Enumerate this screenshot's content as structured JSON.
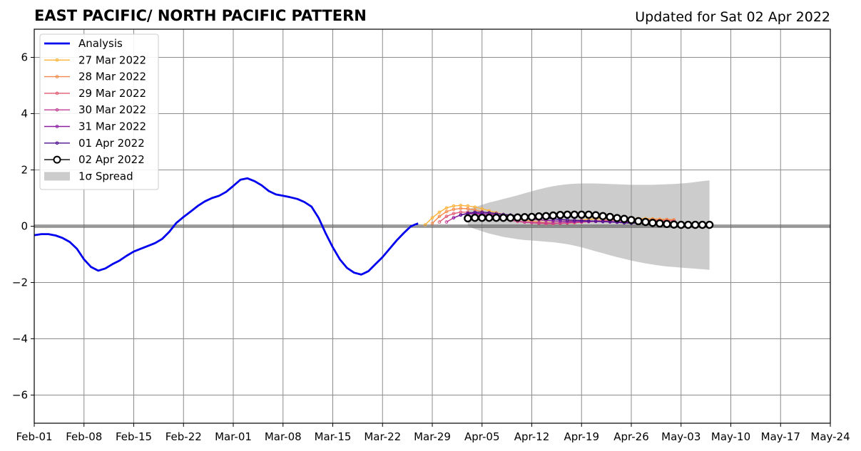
{
  "chart_data": {
    "type": "line",
    "title": "EAST PACIFIC/ NORTH PACIFIC PATTERN",
    "subtitle": "Updated for Sat 02 Apr 2022",
    "xlabel": "",
    "ylabel": "",
    "x_start": "2022-02-01",
    "x_end": "2022-05-24",
    "x_tick_labels": [
      "Feb-01",
      "Feb-08",
      "Feb-15",
      "Feb-22",
      "Mar-01",
      "Mar-08",
      "Mar-15",
      "Mar-22",
      "Mar-29",
      "Apr-05",
      "Apr-12",
      "Apr-19",
      "Apr-26",
      "May-03",
      "May-10",
      "May-17",
      "May-24"
    ],
    "ylim": [
      -7,
      7
    ],
    "y_ticks": [
      -6,
      -4,
      -2,
      0,
      2,
      4,
      6
    ],
    "y_tick_labels": [
      "−6",
      "−4",
      "−2",
      "0",
      "2",
      "4",
      "6"
    ],
    "grid": true,
    "legend_placement": "upper-left",
    "analysis": {
      "name": "Analysis",
      "color": "#0000ee",
      "start": "2022-02-01",
      "values": [
        -0.32,
        -0.28,
        -0.28,
        -0.33,
        -0.42,
        -0.56,
        -0.8,
        -1.18,
        -1.45,
        -1.58,
        -1.5,
        -1.35,
        -1.22,
        -1.05,
        -0.9,
        -0.8,
        -0.7,
        -0.6,
        -0.45,
        -0.2,
        0.12,
        0.33,
        0.52,
        0.72,
        0.88,
        1.0,
        1.08,
        1.22,
        1.43,
        1.65,
        1.7,
        1.6,
        1.45,
        1.25,
        1.13,
        1.08,
        1.03,
        0.97,
        0.86,
        0.7,
        0.3,
        -0.25,
        -0.75,
        -1.18,
        -1.48,
        -1.65,
        -1.72,
        -1.6,
        -1.35,
        -1.1,
        -0.8,
        -0.5,
        -0.24,
        0.0,
        0.1
      ]
    },
    "forecasts": [
      {
        "name": "27 Mar 2022",
        "color": "#fdb33a",
        "start": "2022-03-28",
        "values": [
          0.05,
          0.3,
          0.5,
          0.65,
          0.72,
          0.74,
          0.72,
          0.68,
          0.62,
          0.55,
          0.48,
          0.42,
          0.37,
          0.32,
          0.28,
          0.25,
          0.22,
          0.2,
          0.18,
          0.18,
          0.18,
          0.2,
          0.22,
          0.24,
          0.26,
          0.27,
          0.27,
          0.28,
          0.28,
          0.27,
          0.27,
          0.27,
          0.26,
          0.25,
          0.24,
          0.23
        ]
      },
      {
        "name": "28 Mar 2022",
        "color": "#f5894a",
        "start": "2022-03-29",
        "values": [
          0.1,
          0.35,
          0.52,
          0.6,
          0.63,
          0.62,
          0.58,
          0.52,
          0.46,
          0.4,
          0.34,
          0.29,
          0.25,
          0.21,
          0.18,
          0.15,
          0.13,
          0.12,
          0.11,
          0.11,
          0.12,
          0.14,
          0.16,
          0.18,
          0.2,
          0.22,
          0.24,
          0.25,
          0.25,
          0.25,
          0.25,
          0.25,
          0.24,
          0.24,
          0.23
        ]
      },
      {
        "name": "29 Mar 2022",
        "color": "#e05a72",
        "start": "2022-03-30",
        "values": [
          0.15,
          0.35,
          0.45,
          0.5,
          0.5,
          0.47,
          0.42,
          0.36,
          0.3,
          0.25,
          0.21,
          0.17,
          0.14,
          0.12,
          0.1,
          0.09,
          0.09,
          0.1,
          0.11,
          0.13,
          0.15,
          0.17,
          0.19,
          0.2,
          0.21,
          0.22,
          0.22,
          0.22,
          0.22,
          0.21,
          0.21,
          0.2,
          0.2,
          0.19
        ]
      },
      {
        "name": "30 Mar 2022",
        "color": "#c13d92",
        "start": "2022-03-31",
        "values": [
          0.15,
          0.3,
          0.4,
          0.44,
          0.44,
          0.41,
          0.37,
          0.32,
          0.27,
          0.22,
          0.18,
          0.15,
          0.13,
          0.12,
          0.11,
          0.11,
          0.12,
          0.13,
          0.14,
          0.15,
          0.16,
          0.17,
          0.17,
          0.17,
          0.16,
          0.15,
          0.14,
          0.13,
          0.12,
          0.11,
          0.1,
          0.09,
          0.08
        ]
      },
      {
        "name": "31 Mar 2022",
        "color": "#8b1fa6",
        "start": "2022-04-01",
        "values": [
          0.3,
          0.4,
          0.45,
          0.46,
          0.45,
          0.43,
          0.4,
          0.37,
          0.34,
          0.31,
          0.28,
          0.25,
          0.23,
          0.21,
          0.19,
          0.18,
          0.17,
          0.17,
          0.17,
          0.17,
          0.17,
          0.16,
          0.15,
          0.14,
          0.13,
          0.12,
          0.11,
          0.1,
          0.09,
          0.09,
          0.08,
          0.08
        ]
      },
      {
        "name": "01 Apr 2022",
        "color": "#4b0f8f",
        "start": "2022-04-02",
        "values": [
          0.4,
          0.46,
          0.5,
          0.5,
          0.48,
          0.45,
          0.42,
          0.4,
          0.37,
          0.34,
          0.32,
          0.3,
          0.28,
          0.26,
          0.24,
          0.22,
          0.21,
          0.2,
          0.19,
          0.18,
          0.17,
          0.16,
          0.14,
          0.12,
          0.11,
          0.1,
          0.09,
          0.08,
          0.08,
          0.07,
          0.07
        ]
      },
      {
        "name": "02 Apr 2022",
        "color": "#000000",
        "start": "2022-04-03",
        "marker": "circle",
        "values": [
          0.28,
          0.3,
          0.3,
          0.3,
          0.3,
          0.3,
          0.3,
          0.31,
          0.32,
          0.33,
          0.35,
          0.36,
          0.38,
          0.4,
          0.41,
          0.41,
          0.41,
          0.41,
          0.39,
          0.36,
          0.33,
          0.29,
          0.26,
          0.22,
          0.18,
          0.15,
          0.12,
          0.1,
          0.08,
          0.06,
          0.05,
          0.05,
          0.05,
          0.05,
          0.05
        ]
      }
    ],
    "spread": {
      "name": "1σ Spread",
      "color": "#cccccc",
      "start": "2022-04-03",
      "upper": [
        0.6,
        0.68,
        0.76,
        0.84,
        0.9,
        0.97,
        1.03,
        1.1,
        1.17,
        1.24,
        1.31,
        1.37,
        1.42,
        1.46,
        1.49,
        1.51,
        1.52,
        1.52,
        1.52,
        1.51,
        1.5,
        1.49,
        1.48,
        1.47,
        1.47,
        1.47,
        1.47,
        1.48,
        1.49,
        1.5,
        1.52,
        1.54,
        1.57,
        1.6,
        1.63
      ],
      "lower": [
        0.0,
        -0.1,
        -0.18,
        -0.26,
        -0.32,
        -0.38,
        -0.42,
        -0.46,
        -0.49,
        -0.51,
        -0.53,
        -0.55,
        -0.57,
        -0.6,
        -0.64,
        -0.69,
        -0.75,
        -0.82,
        -0.89,
        -0.96,
        -1.03,
        -1.1,
        -1.16,
        -1.22,
        -1.27,
        -1.32,
        -1.36,
        -1.4,
        -1.43,
        -1.45,
        -1.47,
        -1.49,
        -1.51,
        -1.53,
        -1.55
      ]
    },
    "legend": [
      "Analysis",
      "27 Mar 2022",
      "28 Mar 2022",
      "29 Mar 2022",
      "30 Mar 2022",
      "31 Mar 2022",
      "01 Apr 2022",
      "02 Apr 2022",
      "1σ Spread"
    ]
  }
}
